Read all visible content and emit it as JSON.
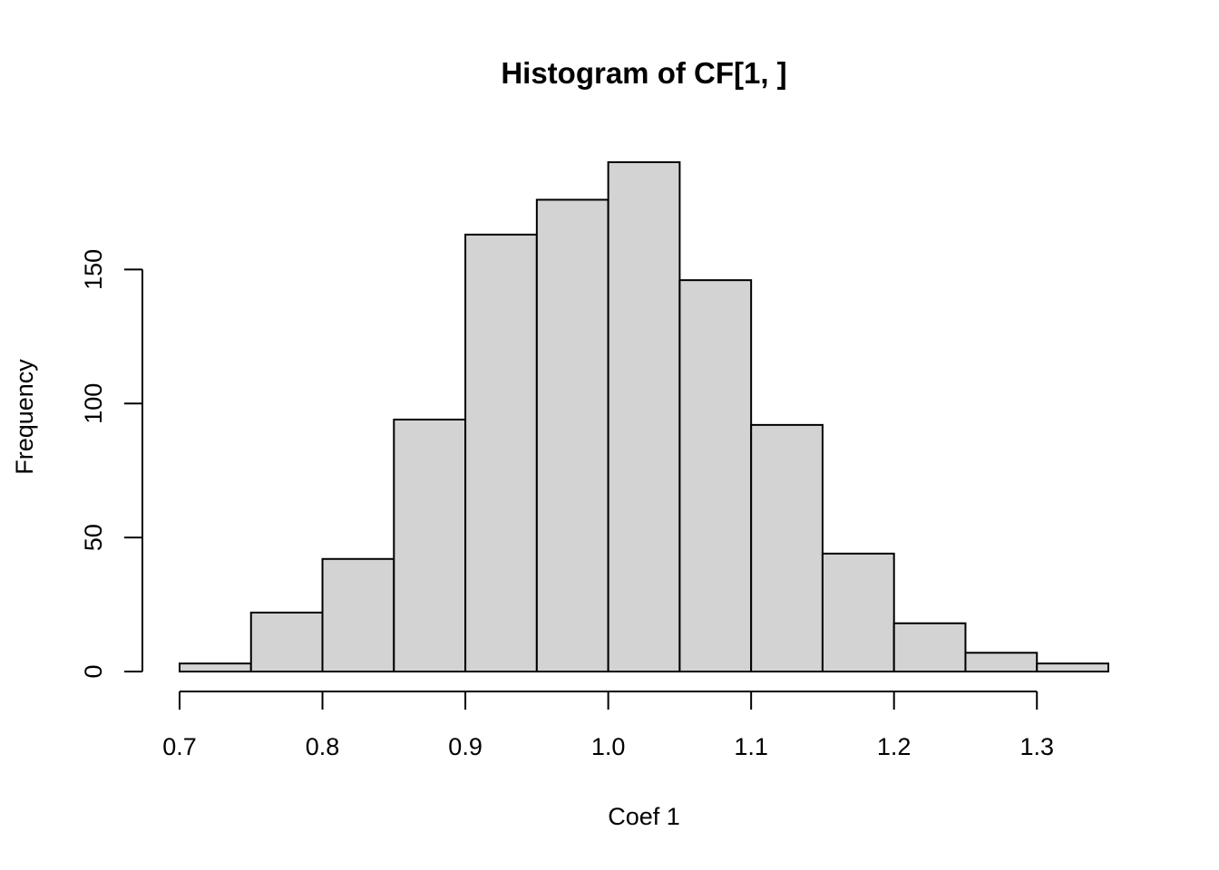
{
  "chart_data": {
    "type": "bar",
    "title": "Histogram of CF[1, ]",
    "xlabel": "Coef 1",
    "ylabel": "Frequency",
    "bin_edges": [
      0.7,
      0.75,
      0.8,
      0.85,
      0.9,
      0.95,
      1.0,
      1.05,
      1.1,
      1.15,
      1.2,
      1.25,
      1.3,
      1.35
    ],
    "values": [
      3,
      22,
      42,
      94,
      163,
      176,
      190,
      146,
      92,
      44,
      18,
      7,
      3
    ],
    "xlim": [
      0.7,
      1.35
    ],
    "ylim": [
      0,
      190
    ],
    "x_ticks": [
      0.7,
      0.8,
      0.9,
      1.0,
      1.1,
      1.2,
      1.3
    ],
    "x_tick_labels": [
      "0.7",
      "0.8",
      "0.9",
      "1.0",
      "1.1",
      "1.2",
      "1.3"
    ],
    "y_ticks": [
      0,
      50,
      100,
      150
    ],
    "y_tick_labels": [
      "0",
      "50",
      "100",
      "150"
    ],
    "bar_fill": "#d3d3d3",
    "bar_stroke": "#000000",
    "grid": false,
    "legend": "none"
  }
}
